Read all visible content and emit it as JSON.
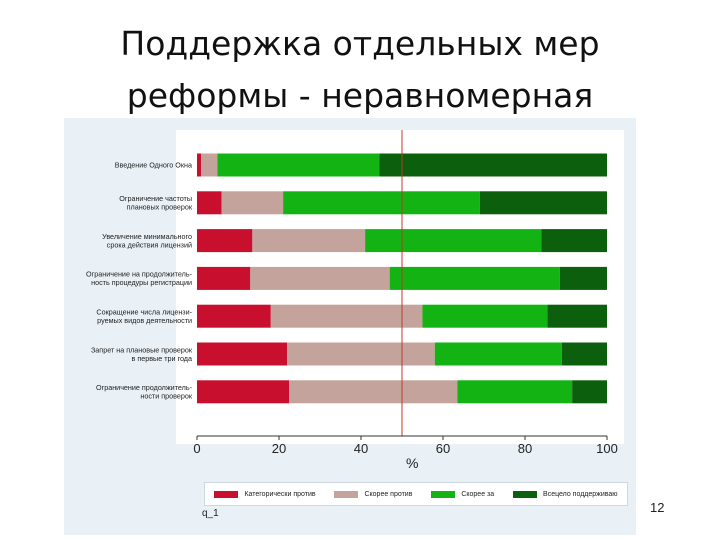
{
  "slide": {
    "title_line1": "Поддержка отдельных мер",
    "title_line2": "реформы - неравномерная",
    "slide_number": "12",
    "figure_caption": "q_1"
  },
  "chart_data": {
    "type": "bar",
    "orientation": "horizontal",
    "stacked": true,
    "categories": [
      [
        "Введение Одного Окна"
      ],
      [
        "Ограничение частоты",
        "плановых проверок"
      ],
      [
        "Увеличение минимального",
        "срока действия лицензий"
      ],
      [
        "Ограничение на продолжитель-",
        "ность процедуры регистрации"
      ],
      [
        "Сокращение числа лицензи-",
        "руемых видов деятельности"
      ],
      [
        "Запрет на плановые проверок",
        "в первые три года"
      ],
      [
        "Ограничение продолжитель-",
        "ности проверок"
      ]
    ],
    "series": [
      {
        "name": "Категорически против",
        "color": "#c8102e",
        "values": [
          1,
          6,
          13.5,
          13,
          18,
          22,
          22.5
        ]
      },
      {
        "name": "Скорее против",
        "color": "#c4a39d",
        "values": [
          4,
          15,
          27.5,
          34,
          37,
          36,
          41
        ]
      },
      {
        "name": "Скорее за",
        "color": "#12b312",
        "values": [
          39.5,
          48,
          43,
          41.5,
          30.5,
          31,
          28
        ]
      },
      {
        "name": "Всецело поддерживаю",
        "color": "#0c5f0c",
        "values": [
          55.5,
          31,
          16,
          11.5,
          14.5,
          11,
          8.5
        ]
      }
    ],
    "xlabel": "%",
    "xlim": [
      0,
      100
    ],
    "xticks": [
      0,
      20,
      40,
      60,
      80,
      100
    ],
    "reference_line": 50,
    "reference_line_color": "#c0392b",
    "grid": false,
    "legend_position": "bottom"
  }
}
